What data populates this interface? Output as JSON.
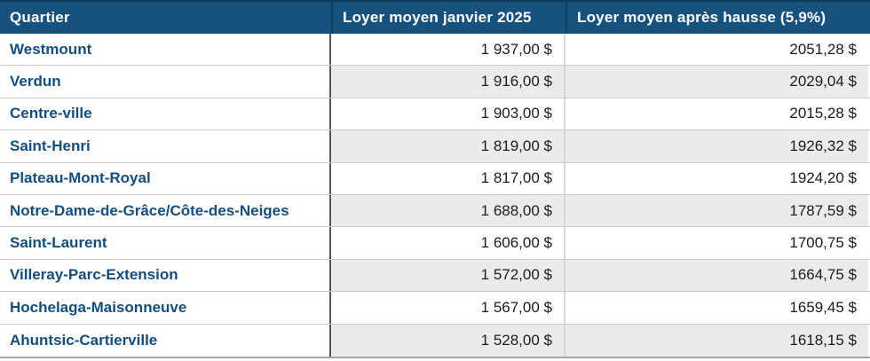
{
  "colors": {
    "header_bg": "#17517e",
    "header_text": "#ffffff",
    "header_divider": "#0f405f",
    "quartier_text": "#134e80",
    "value_text": "#1c1c1c",
    "row_alt_bg": "#ebebeb",
    "row_separator": "#cbcbcb",
    "column_divider_dark": "#565656",
    "column_divider_light": "#d8d8d8",
    "bottom_border": "#a6a6a6"
  },
  "table": {
    "columns": [
      {
        "label": "Quartier"
      },
      {
        "label": "Loyer moyen janvier 2025"
      },
      {
        "label": "Loyer moyen après hausse (5,9%)"
      }
    ],
    "rows": [
      {
        "quartier": "Westmount",
        "loyer_janvier": "1 937,00 $",
        "loyer_apres": "2051,28 $"
      },
      {
        "quartier": "Verdun",
        "loyer_janvier": "1 916,00 $",
        "loyer_apres": "2029,04 $"
      },
      {
        "quartier": "Centre-ville",
        "loyer_janvier": "1 903,00 $",
        "loyer_apres": "2015,28 $"
      },
      {
        "quartier": "Saint-Henri",
        "loyer_janvier": "1 819,00 $",
        "loyer_apres": "1926,32 $"
      },
      {
        "quartier": "Plateau-Mont-Royal",
        "loyer_janvier": "1 817,00 $",
        "loyer_apres": "1924,20 $"
      },
      {
        "quartier": "Notre-Dame-de-Grâce/Côte-des-Neiges",
        "loyer_janvier": "1 688,00 $",
        "loyer_apres": "1787,59 $"
      },
      {
        "quartier": "Saint-Laurent",
        "loyer_janvier": "1 606,00 $",
        "loyer_apres": "1700,75 $"
      },
      {
        "quartier": "Villeray-Parc-Extension",
        "loyer_janvier": "1 572,00 $",
        "loyer_apres": "1664,75 $"
      },
      {
        "quartier": "Hochelaga-Maisonneuve",
        "loyer_janvier": "1 567,00 $",
        "loyer_apres": "1659,45 $"
      },
      {
        "quartier": "Ahuntsic-Cartierville",
        "loyer_janvier": "1 528,00 $",
        "loyer_apres": "1618,15 $"
      }
    ]
  },
  "chart_data": {
    "type": "table",
    "title": "",
    "columns": [
      "Quartier",
      "Loyer moyen janvier 2025",
      "Loyer moyen après hausse (5,9%)"
    ],
    "rows": [
      [
        "Westmount",
        "1 937,00 $",
        "2051,28 $"
      ],
      [
        "Verdun",
        "1 916,00 $",
        "2029,04 $"
      ],
      [
        "Centre-ville",
        "1 903,00 $",
        "2015,28 $"
      ],
      [
        "Saint-Henri",
        "1 819,00 $",
        "1926,32 $"
      ],
      [
        "Plateau-Mont-Royal",
        "1 817,00 $",
        "1924,20 $"
      ],
      [
        "Notre-Dame-de-Grâce/Côte-des-Neiges",
        "1 688,00 $",
        "1787,59 $"
      ],
      [
        "Saint-Laurent",
        "1 606,00 $",
        "1700,75 $"
      ],
      [
        "Villeray-Parc-Extension",
        "1 572,00 $",
        "1664,75 $"
      ],
      [
        "Hochelaga-Maisonneuve",
        "1 567,00 $",
        "1659,45 $"
      ],
      [
        "Ahuntsic-Cartierville",
        "1 528,00 $",
        "1618,15 $"
      ]
    ],
    "values_janvier": [
      1937.0,
      1916.0,
      1903.0,
      1819.0,
      1817.0,
      1688.0,
      1606.0,
      1572.0,
      1567.0,
      1528.0
    ],
    "values_apres_hausse": [
      2051.28,
      2029.04,
      2015.28,
      1926.32,
      1924.2,
      1787.59,
      1700.75,
      1664.75,
      1659.45,
      1618.15
    ],
    "hausse_pct": 5.9,
    "currency": "$"
  }
}
